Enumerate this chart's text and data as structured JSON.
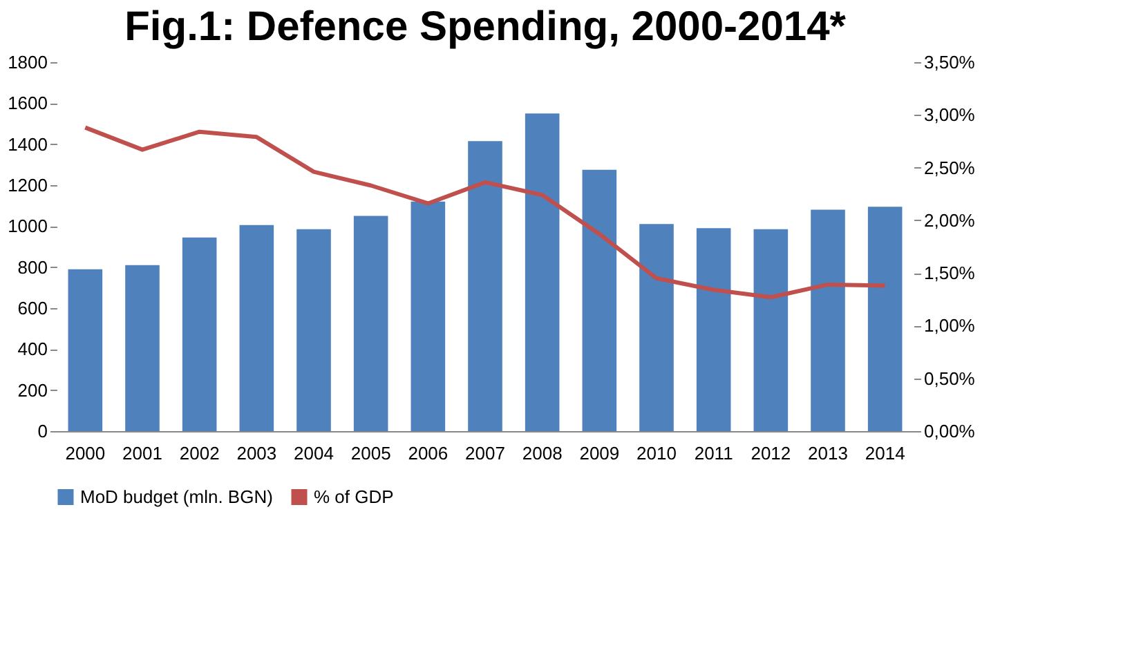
{
  "chart_data": {
    "type": "bar",
    "title": "Fig.1: Defence Spending, 2000-2014*",
    "categories": [
      "2000",
      "2001",
      "2002",
      "2003",
      "2004",
      "2005",
      "2006",
      "2007",
      "2008",
      "2009",
      "2010",
      "2011",
      "2012",
      "2013",
      "2014"
    ],
    "series": [
      {
        "name": "MoD budget (mln. BGN)",
        "color": "#4f81bd",
        "values": [
          790,
          810,
          945,
          1005,
          985,
          1050,
          1120,
          1415,
          1550,
          1275,
          1010,
          990,
          985,
          1080,
          1095
        ]
      },
      {
        "name": "% of GDP",
        "type": "line",
        "axis": "y2",
        "color": "#c0504d",
        "values": [
          2.88,
          2.67,
          2.84,
          2.79,
          2.46,
          2.33,
          2.16,
          2.36,
          2.24,
          1.87,
          1.45,
          1.34,
          1.27,
          1.39,
          1.38
        ]
      }
    ],
    "ylim": [
      0,
      1800
    ],
    "yticks": [
      0,
      200,
      400,
      600,
      800,
      1000,
      1200,
      1400,
      1600,
      1800
    ],
    "y2lim": [
      0,
      3.5
    ],
    "y2ticks": [
      {
        "value": 0,
        "label": "0,00%"
      },
      {
        "value": 0.5,
        "label": "0,50%"
      },
      {
        "value": 1,
        "label": "1,00%"
      },
      {
        "value": 1.5,
        "label": "1,50%"
      },
      {
        "value": 2,
        "label": "2,00%"
      },
      {
        "value": 2.5,
        "label": "2,50%"
      },
      {
        "value": 3,
        "label": "3,00%"
      },
      {
        "value": 3.5,
        "label": "3,50%"
      }
    ],
    "grid": false,
    "legend": "bottom",
    "marker": "none",
    "line_style": "solid"
  }
}
